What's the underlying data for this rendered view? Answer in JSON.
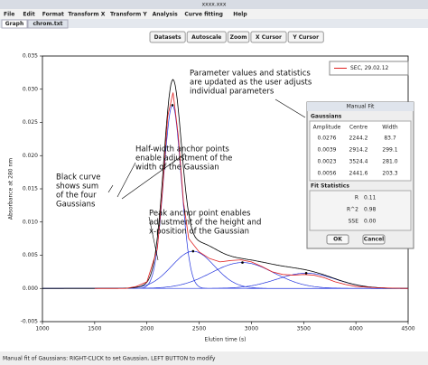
{
  "window": {
    "title": "xxxx.xxx"
  },
  "menu": [
    "File",
    "Edit",
    "Format",
    "Transform X",
    "Transform Y",
    "Analysis",
    "Curve fitting",
    "Help"
  ],
  "tabs": [
    "Graph",
    "chrom.txt"
  ],
  "toolbar": [
    "Datasets",
    "Autoscale",
    "Zoom",
    "X Cursor",
    "Y Cursor"
  ],
  "chart_data": {
    "type": "line",
    "xlabel": "Elution time (s)",
    "ylabel": "Absorbance at 280 nm",
    "xlim": [
      1000,
      4500
    ],
    "xticks": [
      1000,
      1500,
      2000,
      2500,
      3000,
      3500,
      4000,
      4500
    ],
    "ylim": [
      -0.005,
      0.035
    ],
    "yticks": [
      {
        "value": -0.005,
        "label": "-0.005"
      },
      {
        "value": 0,
        "label": "0.000"
      },
      {
        "value": 0.005,
        "label": "0.005"
      },
      {
        "value": 0.01,
        "label": "0.010"
      },
      {
        "value": 0.015,
        "label": "0.015"
      },
      {
        "value": 0.02,
        "label": "0.020"
      },
      {
        "value": 0.025,
        "label": "0.025"
      },
      {
        "value": 0.03,
        "label": "0.030"
      },
      {
        "value": 0.035,
        "label": "0.035"
      }
    ],
    "series": [
      {
        "name": "SEC, 29.02.12",
        "color": "#e02020",
        "x": [
          1500,
          1800,
          1900,
          2000,
          2100,
          2150,
          2200,
          2250,
          2300,
          2350,
          2400,
          2500,
          2600,
          2700,
          2800,
          2900,
          3000,
          3100,
          3200,
          3300,
          3400,
          3500,
          3600,
          3700,
          3800,
          3900,
          4000,
          4200,
          4500
        ],
        "values": [
          0,
          0,
          0.0003,
          0.001,
          0.006,
          0.015,
          0.026,
          0.0295,
          0.023,
          0.013,
          0.0075,
          0.0055,
          0.0045,
          0.004,
          0.0042,
          0.0043,
          0.004,
          0.0033,
          0.0025,
          0.0021,
          0.002,
          0.0021,
          0.002,
          0.0016,
          0.001,
          0.0006,
          0.0003,
          0.0001,
          0
        ]
      }
    ],
    "annotations": [
      [
        "Parameter values and statistics",
        "are updated as the user adjusts",
        "individual parameters"
      ],
      [
        "Half-width anchor points",
        "enable adjustment of the",
        "width of the Gaussian"
      ],
      [
        "Black curve",
        "shows sum",
        "of the four",
        "Gaussians"
      ],
      [
        "Peak anchor point enables",
        "adjustment of the height and",
        "x-position of the Gaussian"
      ]
    ]
  },
  "dialog": {
    "title": "Manual Fit",
    "section": "Gaussians",
    "headers": [
      "Amplitude",
      "Centre",
      "Width"
    ],
    "rows": [
      [
        "0.0276",
        "2244.2",
        "83.7"
      ],
      [
        "0.0039",
        "2914.2",
        "299.1"
      ],
      [
        "0.0023",
        "3524.4",
        "281.0"
      ],
      [
        "0.0056",
        "2441.6",
        "203.3"
      ]
    ],
    "stats_title": "Fit Statistics",
    "stats": [
      [
        "R",
        "0.11"
      ],
      [
        "R^2",
        "0.98"
      ],
      [
        "SSE",
        "0.00"
      ]
    ],
    "buttons": [
      "OK",
      "Cancel"
    ]
  },
  "status": "Manual fit of Gaussians: RIGHT-CLICK to set Gaussian, LEFT BUTTON to modify"
}
